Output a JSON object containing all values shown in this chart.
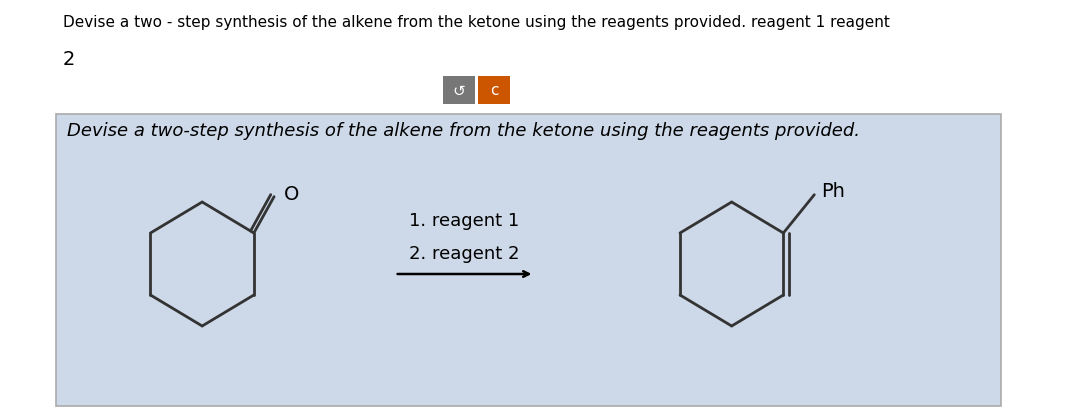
{
  "title_text": "Devise a two - step synthesis of the alkene from the ketone using the reagents provided. reagent 1 reagent",
  "subtitle_text": "2",
  "panel_title": "Devise a two-step synthesis of the alkene from the ketone using the reagents provided.",
  "reagent_label_1": "1. reagent 1",
  "reagent_label_2": "2. reagent 2",
  "ph_label": "Ph",
  "bg_color": "#ffffff",
  "panel_bg": "#cdd9e8",
  "panel_border": "#aaaaaa",
  "button1_color": "#777777",
  "button2_color": "#cc5500",
  "button_label1": "↺",
  "button_label2": "c",
  "title_fontsize": 11,
  "subtitle_fontsize": 14,
  "panel_title_fontsize": 13,
  "reagent_fontsize": 13,
  "molecule_lw": 2.0
}
